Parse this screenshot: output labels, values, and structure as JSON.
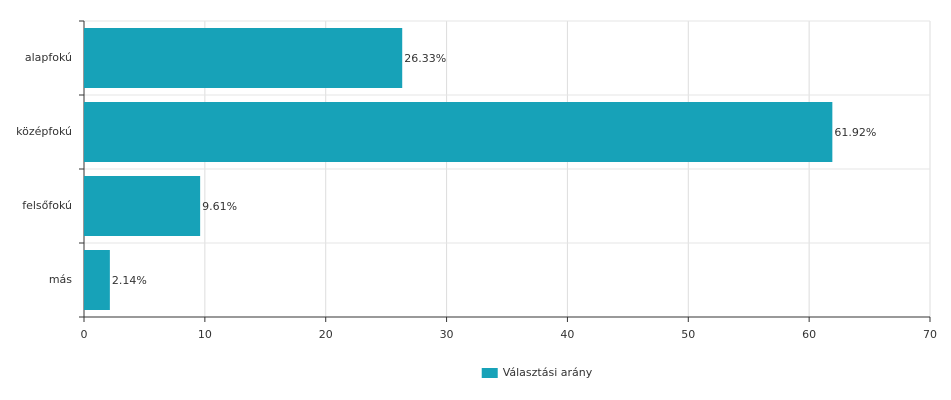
{
  "chart_data": {
    "type": "hbar",
    "categories": [
      "alapfokú",
      "középfokú",
      "felsőfokú",
      "más"
    ],
    "series": [
      {
        "name": "Választási arány",
        "color": "#17a2b8",
        "values": [
          26.33,
          61.92,
          9.61,
          2.14
        ],
        "value_labels": [
          "26.33%",
          "61.92%",
          "9.61%",
          "2.14%"
        ]
      }
    ],
    "xlim": [
      0,
      70
    ],
    "xticks": [
      0,
      10,
      20,
      30,
      40,
      50,
      60,
      70
    ],
    "grid": true,
    "legend": "bottom"
  }
}
